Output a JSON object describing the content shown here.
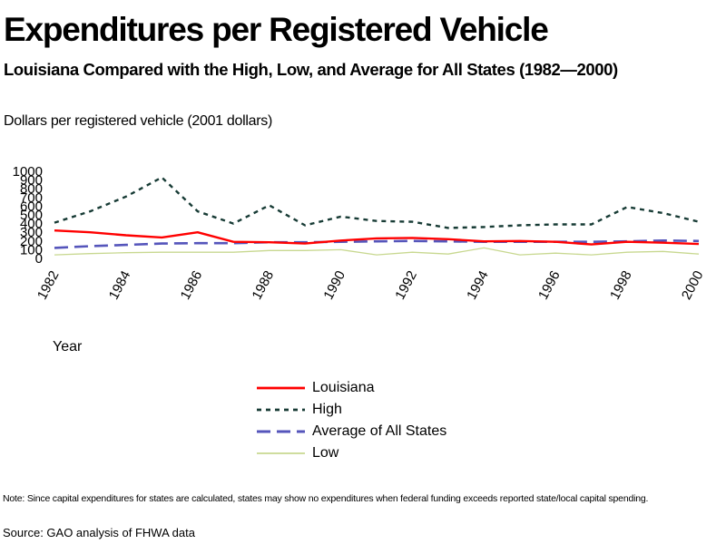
{
  "title": "Expenditures per Registered Vehicle",
  "subtitle": "Louisiana Compared with the High, Low, and Average for All States (1982—2000)",
  "note": "Note: Since capital expenditures for states are calculated, states may show no expenditures when federal funding exceeds reported state/local capital spending.",
  "source": "Source: GAO analysis of FHWA data",
  "chart_data": {
    "type": "line",
    "ylabel": "Dollars per registered vehicle (2001 dollars)",
    "xlabel": "Year",
    "ylim": [
      0,
      1000
    ],
    "yticks": [
      "0",
      "100",
      "200",
      "300",
      "400",
      "500",
      "600",
      "700",
      "800",
      "900",
      "1000"
    ],
    "xticks": [
      "1982",
      "1984",
      "1986",
      "1988",
      "1990",
      "1992",
      "1994",
      "1996",
      "1998",
      "2000"
    ],
    "legend_position": "below",
    "grid": false,
    "x": [
      1982,
      1983,
      1984,
      1985,
      1986,
      1987,
      1988,
      1989,
      1990,
      1991,
      1992,
      1993,
      1994,
      1995,
      1996,
      1997,
      1998,
      1999,
      2000
    ],
    "series": [
      {
        "name": "Louisiana",
        "color": "#ff0000",
        "style": "solid",
        "values": [
          310,
          290,
          255,
          230,
          290,
          180,
          175,
          160,
          195,
          220,
          225,
          210,
          185,
          190,
          180,
          150,
          180,
          170,
          155
        ]
      },
      {
        "name": "High",
        "color": "#173b35",
        "style": "dotted",
        "values": [
          400,
          530,
          700,
          920,
          530,
          390,
          600,
          370,
          470,
          420,
          410,
          340,
          350,
          370,
          380,
          380,
          580,
          510,
          410
        ]
      },
      {
        "name": "Average of All States",
        "color": "#5555bb",
        "style": "dashed",
        "values": [
          110,
          130,
          145,
          160,
          165,
          165,
          175,
          175,
          180,
          185,
          190,
          185,
          180,
          180,
          180,
          180,
          185,
          195,
          190
        ]
      },
      {
        "name": "Low",
        "color": "#c8d890",
        "style": "solid",
        "values": [
          30,
          45,
          55,
          60,
          60,
          60,
          80,
          80,
          90,
          30,
          60,
          40,
          110,
          30,
          50,
          30,
          60,
          70,
          40
        ]
      }
    ]
  }
}
